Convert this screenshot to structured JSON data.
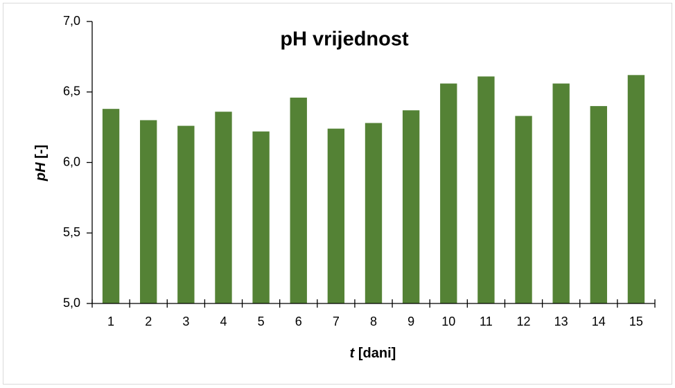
{
  "chart_data": {
    "type": "bar",
    "title": "pH vrijednost",
    "ylabel": {
      "symbol": "pH",
      "unit": "[-]"
    },
    "xlabel": {
      "symbol": "t",
      "unit": "[dani]"
    },
    "categories": [
      "1",
      "2",
      "3",
      "4",
      "5",
      "6",
      "7",
      "8",
      "9",
      "10",
      "11",
      "12",
      "13",
      "14",
      "15"
    ],
    "values": [
      6.38,
      6.3,
      6.26,
      6.36,
      6.22,
      6.46,
      6.24,
      6.28,
      6.37,
      6.56,
      6.61,
      6.33,
      6.56,
      6.4,
      6.62
    ],
    "color": "#548235",
    "ylim": [
      5.0,
      7.0
    ],
    "yticks": [
      {
        "value": 5.0,
        "label": "5,0"
      },
      {
        "value": 5.5,
        "label": "5,5"
      },
      {
        "value": 6.0,
        "label": "6,0"
      },
      {
        "value": 6.5,
        "label": "6,5"
      },
      {
        "value": 7.0,
        "label": "7,0"
      }
    ],
    "grid": false
  }
}
